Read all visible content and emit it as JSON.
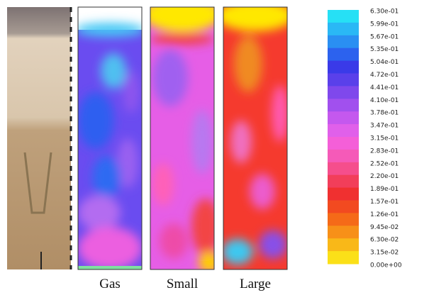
{
  "panels": [
    {
      "label": "Gas"
    },
    {
      "label": "Small"
    },
    {
      "label": "Large"
    }
  ],
  "colorbar": {
    "labels": [
      "6.30e-01",
      "5.99e-01",
      "5.67e-01",
      "5.35e-01",
      "5.04e-01",
      "4.72e-01",
      "4.41e-01",
      "4.10e-01",
      "3.78e-01",
      "3.47e-01",
      "3.15e-01",
      "2.83e-01",
      "2.52e-01",
      "2.20e-01",
      "1.89e-01",
      "1.57e-01",
      "1.26e-01",
      "9.45e-02",
      "6.30e-02",
      "3.15e-02",
      "0.00e+00"
    ]
  }
}
